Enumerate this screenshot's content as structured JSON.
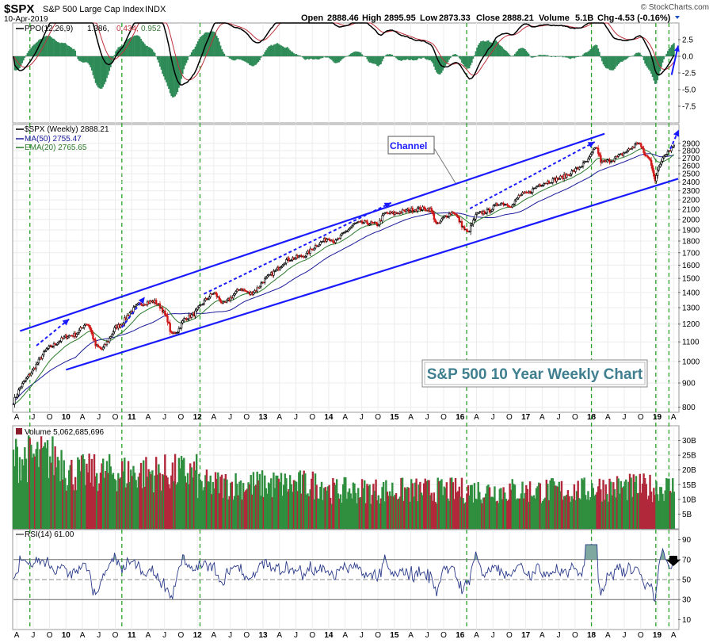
{
  "header": {
    "symbol": "$SPX",
    "name": "S&P 500 Large Cap Index",
    "exchange": "INDX",
    "date": "10-Apr-2019",
    "copyright": "© StockCharts.com",
    "open_label": "Open",
    "open": "2888.46",
    "high_label": "High",
    "high": "2895.95",
    "low_label": "Low",
    "low": "2873.33",
    "close_label": "Close",
    "close": "2888.21",
    "volume_label": "Volume",
    "volume": "5.1B",
    "chg_label": "Chg",
    "chg": "-4.53 (-0.16%)"
  },
  "ppo": {
    "label": "PPO(12,26,9)",
    "v1": "1.386,",
    "v2": "0.434,",
    "v3": "0.952",
    "ticks": [
      "2.5",
      "0.0",
      "-2.5",
      "-5.0",
      "-7.5"
    ],
    "tick_values": [
      2.5,
      0,
      -2.5,
      -5,
      -7.5
    ]
  },
  "price": {
    "label": "$SPX (Weekly) 2888.21",
    "ma_label": "MA(50) 2755.47",
    "ema_label": "EMA(20) 2765.65",
    "ticks": [
      "2900",
      "2800",
      "2700",
      "2600",
      "2500",
      "2400",
      "2300",
      "2200",
      "2100",
      "2000",
      "1900",
      "1800",
      "1700",
      "1600",
      "1500",
      "1400",
      "1300",
      "1200",
      "1100",
      "1000",
      "900",
      "800"
    ],
    "tick_values": [
      2900,
      2800,
      2700,
      2600,
      2500,
      2400,
      2300,
      2200,
      2100,
      2000,
      1900,
      1800,
      1700,
      1600,
      1500,
      1400,
      1300,
      1200,
      1100,
      1000,
      900,
      800
    ],
    "log_scale": true,
    "channel_label": "Channel",
    "box_title": "S&P 500 10 Year Weekly Chart"
  },
  "volume": {
    "label": "Volume 5,062,685,696",
    "ticks": [
      "30B",
      "25B",
      "20B",
      "15B",
      "10B",
      "5B"
    ],
    "tick_values": [
      30,
      25,
      20,
      15,
      10,
      5
    ]
  },
  "rsi": {
    "label": "RSI(14) 61.00",
    "ticks": [
      "90",
      "70",
      "50",
      "30",
      "10"
    ],
    "tick_values": [
      90,
      70,
      50,
      30,
      10
    ]
  },
  "x_axis": {
    "labels": [
      {
        "t": "A",
        "d": 2009.25
      },
      {
        "t": "J",
        "d": 2009.5
      },
      {
        "t": "O",
        "d": 2009.75
      },
      {
        "t": "10",
        "d": 2010.0,
        "b": true
      },
      {
        "t": "A",
        "d": 2010.25
      },
      {
        "t": "J",
        "d": 2010.5
      },
      {
        "t": "O",
        "d": 2010.75
      },
      {
        "t": "11",
        "d": 2011.0,
        "b": true
      },
      {
        "t": "A",
        "d": 2011.25
      },
      {
        "t": "J",
        "d": 2011.5
      },
      {
        "t": "O",
        "d": 2011.75
      },
      {
        "t": "12",
        "d": 2012.0,
        "b": true
      },
      {
        "t": "A",
        "d": 2012.25
      },
      {
        "t": "J",
        "d": 2012.5
      },
      {
        "t": "O",
        "d": 2012.75
      },
      {
        "t": "13",
        "d": 2013.0,
        "b": true
      },
      {
        "t": "A",
        "d": 2013.25
      },
      {
        "t": "J",
        "d": 2013.5
      },
      {
        "t": "O",
        "d": 2013.75
      },
      {
        "t": "14",
        "d": 2014.0,
        "b": true
      },
      {
        "t": "A",
        "d": 2014.25
      },
      {
        "t": "J",
        "d": 2014.5
      },
      {
        "t": "O",
        "d": 2014.75
      },
      {
        "t": "15",
        "d": 2015.0,
        "b": true
      },
      {
        "t": "A",
        "d": 2015.25
      },
      {
        "t": "J",
        "d": 2015.5
      },
      {
        "t": "O",
        "d": 2015.75
      },
      {
        "t": "16",
        "d": 2016.0,
        "b": true
      },
      {
        "t": "A",
        "d": 2016.25
      },
      {
        "t": "J",
        "d": 2016.5
      },
      {
        "t": "O",
        "d": 2016.75
      },
      {
        "t": "17",
        "d": 2017.0,
        "b": true
      },
      {
        "t": "A",
        "d": 2017.25
      },
      {
        "t": "J",
        "d": 2017.5
      },
      {
        "t": "O",
        "d": 2017.75
      },
      {
        "t": "18",
        "d": 2018.0,
        "b": true
      },
      {
        "t": "A",
        "d": 2018.25
      },
      {
        "t": "J",
        "d": 2018.5
      },
      {
        "t": "O",
        "d": 2018.75
      },
      {
        "t": "19",
        "d": 2019.0,
        "b": true
      },
      {
        "t": "A",
        "d": 2019.25
      }
    ],
    "range": [
      2009.2,
      2019.32
    ],
    "green_lines": [
      2009.45,
      2010.85,
      2012.04,
      2016.1,
      2018.0,
      2018.98,
      2019.18
    ]
  },
  "chart_data": {
    "type": "line",
    "title": "S&P 500 10 Year Weekly Chart",
    "x_unit": "year",
    "price_close": [
      [
        2009.2,
        820
      ],
      [
        2009.3,
        880
      ],
      [
        2009.4,
        920
      ],
      [
        2009.5,
        960
      ],
      [
        2009.6,
        1010
      ],
      [
        2009.7,
        1060
      ],
      [
        2009.8,
        1080
      ],
      [
        2009.9,
        1105
      ],
      [
        2010.0,
        1130
      ],
      [
        2010.15,
        1140
      ],
      [
        2010.3,
        1205
      ],
      [
        2010.35,
        1190
      ],
      [
        2010.45,
        1080
      ],
      [
        2010.55,
        1060
      ],
      [
        2010.65,
        1110
      ],
      [
        2010.75,
        1180
      ],
      [
        2010.85,
        1200
      ],
      [
        2010.95,
        1260
      ],
      [
        2011.1,
        1320
      ],
      [
        2011.25,
        1335
      ],
      [
        2011.35,
        1340
      ],
      [
        2011.45,
        1300
      ],
      [
        2011.55,
        1220
      ],
      [
        2011.6,
        1140
      ],
      [
        2011.7,
        1160
      ],
      [
        2011.8,
        1230
      ],
      [
        2011.95,
        1260
      ],
      [
        2012.1,
        1340
      ],
      [
        2012.25,
        1400
      ],
      [
        2012.4,
        1320
      ],
      [
        2012.5,
        1360
      ],
      [
        2012.65,
        1430
      ],
      [
        2012.8,
        1390
      ],
      [
        2012.9,
        1420
      ],
      [
        2013.0,
        1480
      ],
      [
        2013.2,
        1560
      ],
      [
        2013.35,
        1640
      ],
      [
        2013.5,
        1660
      ],
      [
        2013.65,
        1680
      ],
      [
        2013.8,
        1760
      ],
      [
        2014.0,
        1830
      ],
      [
        2014.1,
        1790
      ],
      [
        2014.25,
        1880
      ],
      [
        2014.4,
        1960
      ],
      [
        2014.55,
        1970
      ],
      [
        2014.75,
        1950
      ],
      [
        2014.85,
        2060
      ],
      [
        2015.0,
        2060
      ],
      [
        2015.2,
        2090
      ],
      [
        2015.4,
        2110
      ],
      [
        2015.55,
        2100
      ],
      [
        2015.65,
        1940
      ],
      [
        2015.75,
        2020
      ],
      [
        2015.9,
        2080
      ],
      [
        2016.05,
        1920
      ],
      [
        2016.12,
        1870
      ],
      [
        2016.25,
        2050
      ],
      [
        2016.45,
        2090
      ],
      [
        2016.6,
        2170
      ],
      [
        2016.8,
        2140
      ],
      [
        2016.9,
        2250
      ],
      [
        2017.05,
        2280
      ],
      [
        2017.2,
        2370
      ],
      [
        2017.4,
        2420
      ],
      [
        2017.6,
        2470
      ],
      [
        2017.8,
        2570
      ],
      [
        2017.95,
        2670
      ],
      [
        2018.07,
        2860
      ],
      [
        2018.15,
        2640
      ],
      [
        2018.3,
        2670
      ],
      [
        2018.45,
        2740
      ],
      [
        2018.6,
        2830
      ],
      [
        2018.72,
        2920
      ],
      [
        2018.8,
        2760
      ],
      [
        2018.9,
        2660
      ],
      [
        2018.97,
        2420
      ],
      [
        2019.03,
        2590
      ],
      [
        2019.1,
        2740
      ],
      [
        2019.2,
        2820
      ],
      [
        2019.27,
        2888
      ]
    ],
    "channel": {
      "upper": [
        [
          2009.3,
          1160
        ],
        [
          2018.2,
          3040
        ]
      ],
      "lower": [
        [
          2010.0,
          960
        ],
        [
          2019.32,
          2440
        ]
      ]
    },
    "trend_arrows": [
      [
        [
          2009.55,
          1080
        ],
        [
          2010.05,
          1230
        ]
      ],
      [
        [
          2010.85,
          1180
        ],
        [
          2011.2,
          1370
        ]
      ],
      [
        [
          2012.1,
          1390
        ],
        [
          2014.95,
          2170
        ]
      ],
      [
        [
          2016.15,
          2110
        ],
        [
          2018.05,
          2920
        ]
      ],
      [
        [
          2019.2,
          2820
        ],
        [
          2019.33,
          3100
        ]
      ]
    ],
    "ppo_range": [
      -10,
      5
    ],
    "volume_unit": "B",
    "volume_range": [
      0,
      35
    ],
    "rsi_range": [
      0,
      100
    ],
    "rsi_levels": [
      70,
      50,
      30
    ]
  }
}
